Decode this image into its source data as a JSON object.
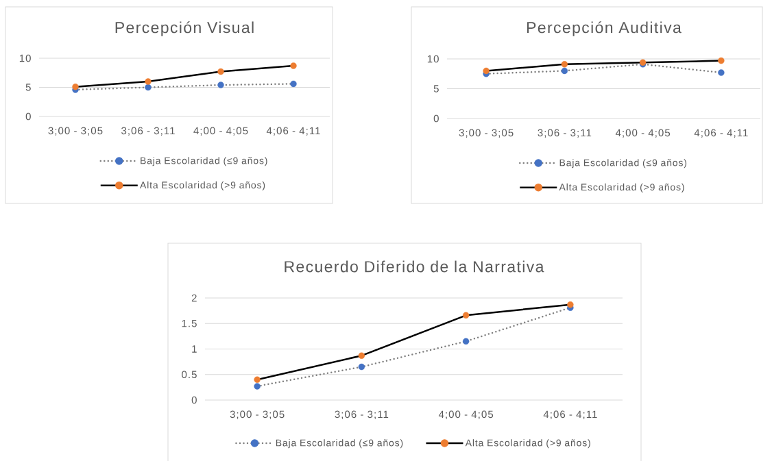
{
  "chart_data": [
    {
      "type": "line",
      "title": "Percepción Visual",
      "categories": [
        "3;00 - 3;05",
        "3;06 - 3;11",
        "4;00 - 4;05",
        "4;06 - 4;11"
      ],
      "series": [
        {
          "name": "Baja Escolaridad (≤9 años)",
          "color": "#7f7f7f",
          "colors": [
            "#4472c4",
            "#4472c4",
            "#4472c4",
            "#4472c4"
          ],
          "line_style": "dotted",
          "values": [
            4.6,
            5.0,
            5.4,
            5.6
          ]
        },
        {
          "name": "Alta Escolaridad (>9 años)",
          "color": "#000000",
          "colors": [
            "#ed7d31",
            "#ed7d31",
            "#ed7d31",
            "#ed7d31"
          ],
          "line_style": "solid",
          "values": [
            5.1,
            6.0,
            7.7,
            8.7
          ]
        }
      ],
      "ylim": [
        0,
        10
      ],
      "yticks": [
        0,
        5,
        10
      ],
      "grid": "y",
      "legend": "bottom",
      "marker": "circle"
    },
    {
      "type": "line",
      "title": "Percepción Auditiva",
      "categories": [
        "3;00 - 3;05",
        "3;06 - 3;11",
        "4;00 - 4;05",
        "4;06 - 4;11"
      ],
      "series": [
        {
          "name": "Baja Escolaridad (≤9 años)",
          "color": "#7f7f7f",
          "colors": [
            "#4472c4",
            "#4472c4",
            "#4472c4",
            "#4472c4"
          ],
          "line_style": "dotted",
          "values": [
            7.5,
            8.0,
            9.1,
            7.7
          ]
        },
        {
          "name": "Alta Escolaridad (>9 años)",
          "color": "#000000",
          "colors": [
            "#ed7d31",
            "#ed7d31",
            "#ed7d31",
            "#ed7d31"
          ],
          "line_style": "solid",
          "values": [
            8.0,
            9.1,
            9.4,
            9.7
          ]
        }
      ],
      "ylim": [
        0,
        10
      ],
      "yticks": [
        0,
        5,
        10
      ],
      "grid": "y",
      "legend": "bottom",
      "marker": "circle"
    },
    {
      "type": "line",
      "title": "Recuerdo Diferido de la Narrativa",
      "categories": [
        "3;00 - 3;05",
        "3;06 - 3;11",
        "4;00 - 4;05",
        "4;06 - 4;11"
      ],
      "series": [
        {
          "name": "Baja Escolaridad (≤9 años)",
          "color": "#7f7f7f",
          "colors": [
            "#4472c4",
            "#4472c4",
            "#4472c4",
            "#4472c4"
          ],
          "line_style": "dotted",
          "values": [
            0.27,
            0.65,
            1.15,
            1.81
          ]
        },
        {
          "name": "Alta Escolaridad (>9 años)",
          "color": "#000000",
          "colors": [
            "#ed7d31",
            "#ed7d31",
            "#ed7d31",
            "#ed7d31"
          ],
          "line_style": "solid",
          "values": [
            0.4,
            0.87,
            1.66,
            1.87
          ]
        }
      ],
      "ylim": [
        0,
        2
      ],
      "yticks": [
        0,
        0.5,
        1,
        1.5,
        2
      ],
      "grid": "y",
      "legend": "bottom",
      "marker": "circle"
    }
  ]
}
